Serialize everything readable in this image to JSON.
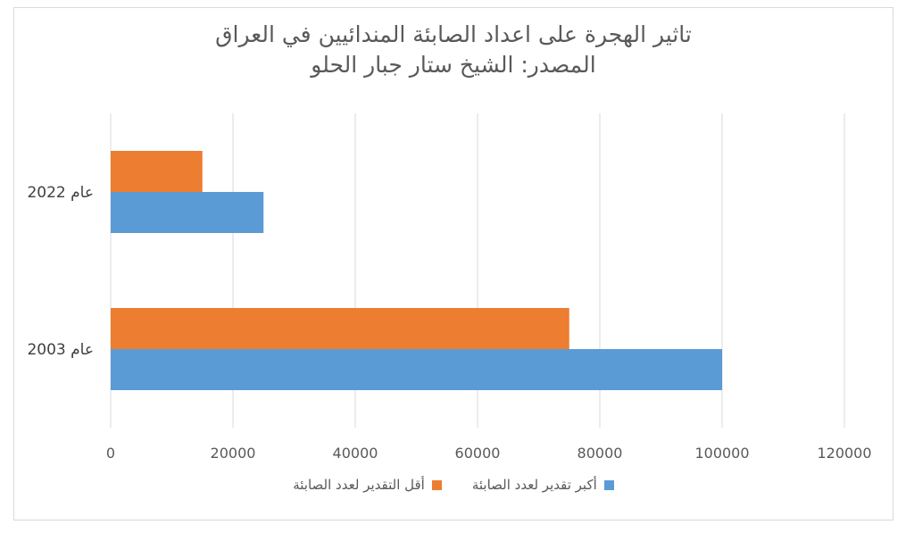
{
  "chart_data": {
    "type": "bar",
    "orientation": "horizontal",
    "title_lines": [
      "تاثير الهجرة على اعداد الصابئة المندائيين في العراق",
      "المصدر: الشيخ ستار جبار الحلو"
    ],
    "categories": [
      "عام 2022",
      "عام 2003"
    ],
    "series": [
      {
        "name": "أقل التقدير لعدد الصابئة",
        "values": [
          15000,
          75000
        ],
        "color": "#ed7d31"
      },
      {
        "name": "أكبر تقدير لعدد الصابئة",
        "values": [
          25000,
          100000
        ],
        "color": "#5b9bd5"
      }
    ],
    "xlim": [
      0,
      120000
    ],
    "x_ticks": [
      "0",
      "20000",
      "40000",
      "60000",
      "80000",
      "100000",
      "120000"
    ],
    "grid": true,
    "legend_position": "bottom"
  }
}
